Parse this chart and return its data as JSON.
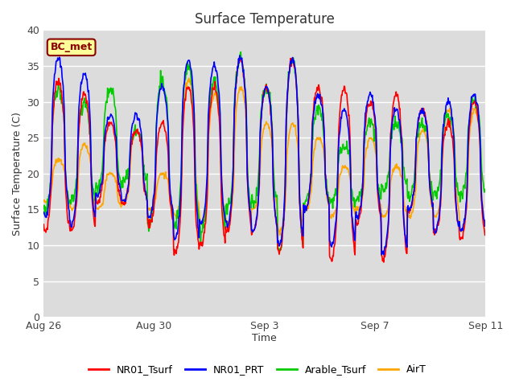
{
  "title": "Surface Temperature",
  "ylabel": "Surface Temperature (C)",
  "xlabel": "Time",
  "ylim": [
    0,
    40
  ],
  "yticks": [
    0,
    5,
    10,
    15,
    20,
    25,
    30,
    35,
    40
  ],
  "bg_color": "#dcdcdc",
  "fig_color": "#ffffff",
  "annotation_text": "BC_met",
  "annotation_bg": "#ffff99",
  "annotation_border": "#8b0000",
  "lines": {
    "NR01_Tsurf": {
      "color": "#ff0000",
      "lw": 1.2
    },
    "NR01_PRT": {
      "color": "#0000ff",
      "lw": 1.2
    },
    "Arable_Tsurf": {
      "color": "#00cc00",
      "lw": 1.2
    },
    "AirT": {
      "color": "#ffa500",
      "lw": 1.2
    }
  },
  "show_xticks": [
    0,
    4,
    8,
    12,
    16
  ],
  "show_xlabels": [
    "Aug 26",
    "Aug 30",
    "Sep 3",
    "Sep 7",
    "Sep 11"
  ],
  "total_days": 17,
  "points_per_day": 48,
  "daily_max_NR01_Tsurf": [
    33,
    31,
    27,
    26,
    27,
    32,
    32,
    36,
    32,
    36,
    32,
    32,
    30,
    31,
    29,
    27,
    30
  ],
  "daily_min_NR01_Tsurf": [
    12,
    12,
    16,
    16,
    13,
    9,
    10,
    12,
    12,
    9,
    15,
    8,
    13,
    8,
    15,
    12,
    11
  ],
  "daily_max_NR01_PRT": [
    36,
    34,
    28,
    28,
    32,
    36,
    35,
    36,
    32,
    36,
    31,
    29,
    31,
    29,
    29,
    30,
    31
  ],
  "daily_min_NR01_PRT": [
    14,
    13,
    17,
    16,
    14,
    11,
    13,
    13,
    12,
    10,
    15,
    10,
    14,
    9,
    15,
    12,
    12
  ],
  "daily_max_Arable": [
    32,
    30,
    32,
    26,
    33,
    35,
    33,
    36,
    32,
    36,
    29,
    24,
    27,
    27,
    27,
    28,
    30
  ],
  "daily_min_Arable": [
    15,
    16,
    18,
    19,
    13,
    13,
    12,
    15,
    16,
    9,
    16,
    16,
    16,
    18,
    17,
    17,
    17
  ],
  "daily_max_AirT": [
    22,
    24,
    20,
    26,
    20,
    33,
    31,
    32,
    27,
    27,
    25,
    21,
    25,
    21,
    26,
    29,
    29
  ],
  "daily_min_AirT": [
    16,
    15,
    15,
    16,
    15,
    14,
    13,
    13,
    15,
    12,
    15,
    14,
    15,
    14,
    14,
    14,
    12
  ]
}
